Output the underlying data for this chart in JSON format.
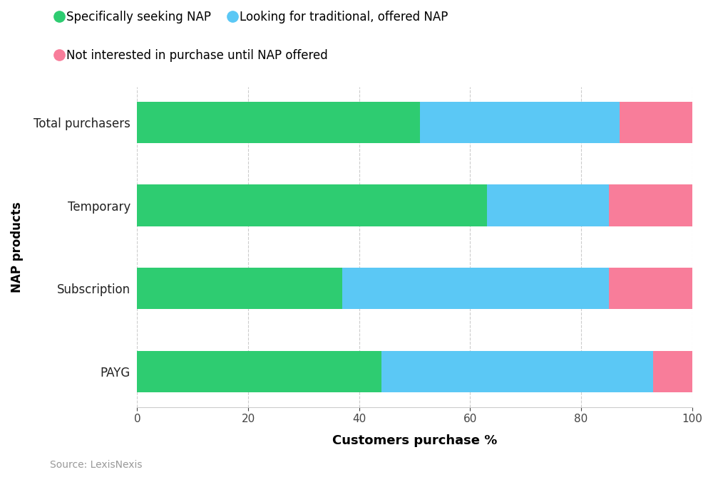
{
  "categories": [
    "PAYG",
    "Subscription",
    "Temporary",
    "Total purchasers"
  ],
  "green": [
    44,
    37,
    63,
    51
  ],
  "blue": [
    49,
    48,
    22,
    36
  ],
  "pink": [
    7,
    15,
    15,
    13
  ],
  "green_color": "#2ECC71",
  "blue_color": "#5BC8F5",
  "pink_color": "#F87D9A",
  "green_label": "Specifically seeking NAP",
  "blue_label": "Looking for traditional, offered NAP",
  "pink_label": "Not interested in purchase until NAP offered",
  "xlabel": "Customers purchase %",
  "ylabel": "NAP products",
  "source": "Source: LexisNexis",
  "xlim": [
    0,
    100
  ],
  "xticks": [
    0,
    20,
    40,
    60,
    80,
    100
  ],
  "bar_height": 0.5,
  "figsize": [
    10.0,
    6.7
  ],
  "dpi": 100,
  "background_color": "#FFFFFF"
}
